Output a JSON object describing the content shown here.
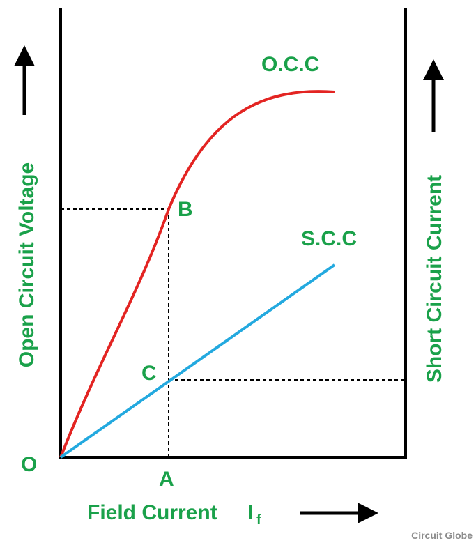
{
  "diagram": {
    "curves": {
      "occ": {
        "label": "O.C.C",
        "color": "#e32422"
      },
      "scc": {
        "label": "S.C.C",
        "color": "#23a9df"
      }
    },
    "points": {
      "origin": "O",
      "a": "A",
      "b": "B",
      "c": "C"
    },
    "axes": {
      "x_label": "Field Current",
      "x_symbol": "I",
      "x_subscript": "f",
      "left_label": "Open Circuit Voltage",
      "right_label": "Short Circuit Current"
    },
    "label_color": "#1aa14a",
    "axis_color": "#000000"
  },
  "watermark": "Circuit Globe"
}
